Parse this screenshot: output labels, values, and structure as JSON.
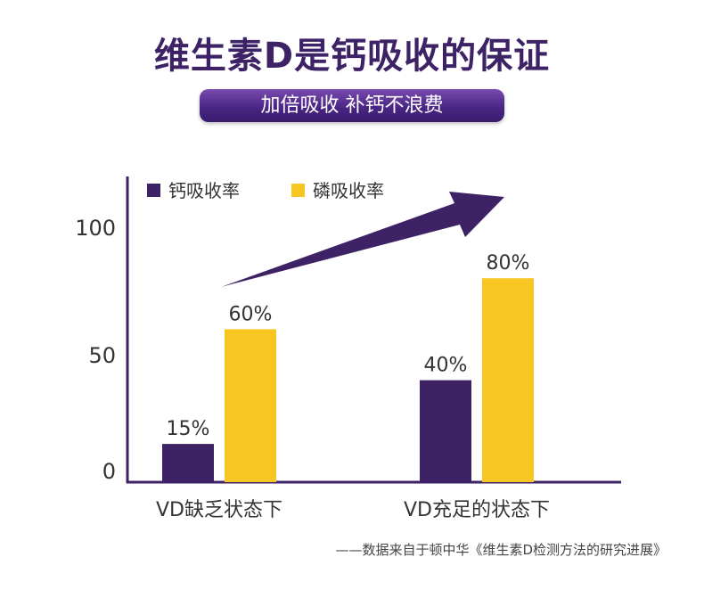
{
  "header": {
    "title": "维生素D是钙吸收的保证",
    "subtitle": "加倍吸收 补钙不浪费"
  },
  "colors": {
    "calcium": "#3d2266",
    "phosphorus": "#f7c623",
    "arrow": "#3d2266",
    "axis": "#3d2266"
  },
  "chart_data": {
    "type": "bar",
    "categories": [
      "VD缺乏状态下",
      "VD充足的状态下"
    ],
    "series": [
      {
        "name": "钙吸收率",
        "values": [
          15,
          40
        ],
        "labels": [
          "15%",
          "40%"
        ]
      },
      {
        "name": "磷吸收率",
        "values": [
          60,
          80
        ],
        "labels": [
          "60%",
          "80%"
        ]
      }
    ],
    "yticks": [
      "0",
      "50",
      "100"
    ],
    "ylim": [
      0,
      100
    ],
    "legend_position": "top-left",
    "grid": false
  },
  "source": "——数据来自于顿中华《维生素D检测方法的研究进展》"
}
